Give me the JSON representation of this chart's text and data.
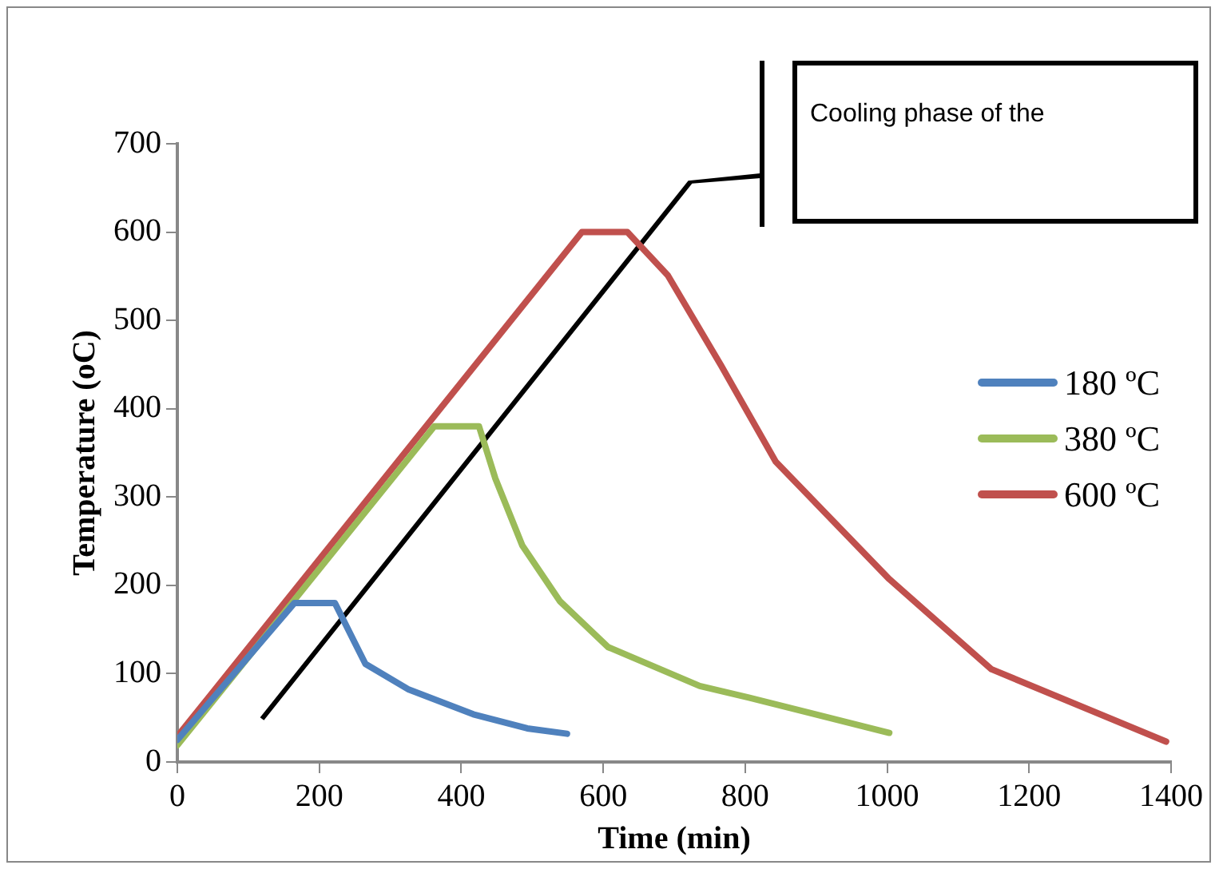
{
  "chart_data": {
    "type": "line",
    "xlabel": "Time (min)",
    "ylabel": "Temperature (oC)",
    "annotations": [
      "Cooling phase of the"
    ],
    "series": [
      {
        "name": "180 ºC",
        "color": "#4f81bd",
        "x": [
          0,
          165,
          205,
          222,
          250,
          265,
          326,
          417,
          493,
          549
        ],
        "values": [
          25,
          180,
          180,
          180,
          135,
          111,
          82,
          54,
          38,
          32
        ]
      },
      {
        "name": "380 ºC",
        "color": "#9bbb59",
        "x": [
          0,
          362,
          425,
          448,
          486,
          539,
          607,
          736,
          805,
          1003
        ],
        "values": [
          19,
          380,
          380,
          321,
          245,
          182,
          130,
          86,
          73,
          33
        ]
      },
      {
        "name": "600 ºC",
        "color": "#c0504d",
        "x": [
          0,
          570,
          634,
          691,
          766,
          843,
          1003,
          1147,
          1300,
          1393
        ],
        "values": [
          29,
          600,
          600,
          551,
          449,
          340,
          207,
          105,
          54,
          23
        ]
      }
    ],
    "xlim": [
      0,
      1400
    ],
    "xticks": [
      0,
      200,
      400,
      600,
      800,
      1000,
      1200,
      1400
    ],
    "ylim": [
      0,
      700
    ],
    "yticks": [
      0,
      100,
      200,
      300,
      400,
      500,
      600,
      700
    ],
    "grid": false,
    "legend": "right",
    "marker": "none",
    "line_style": "solid"
  }
}
